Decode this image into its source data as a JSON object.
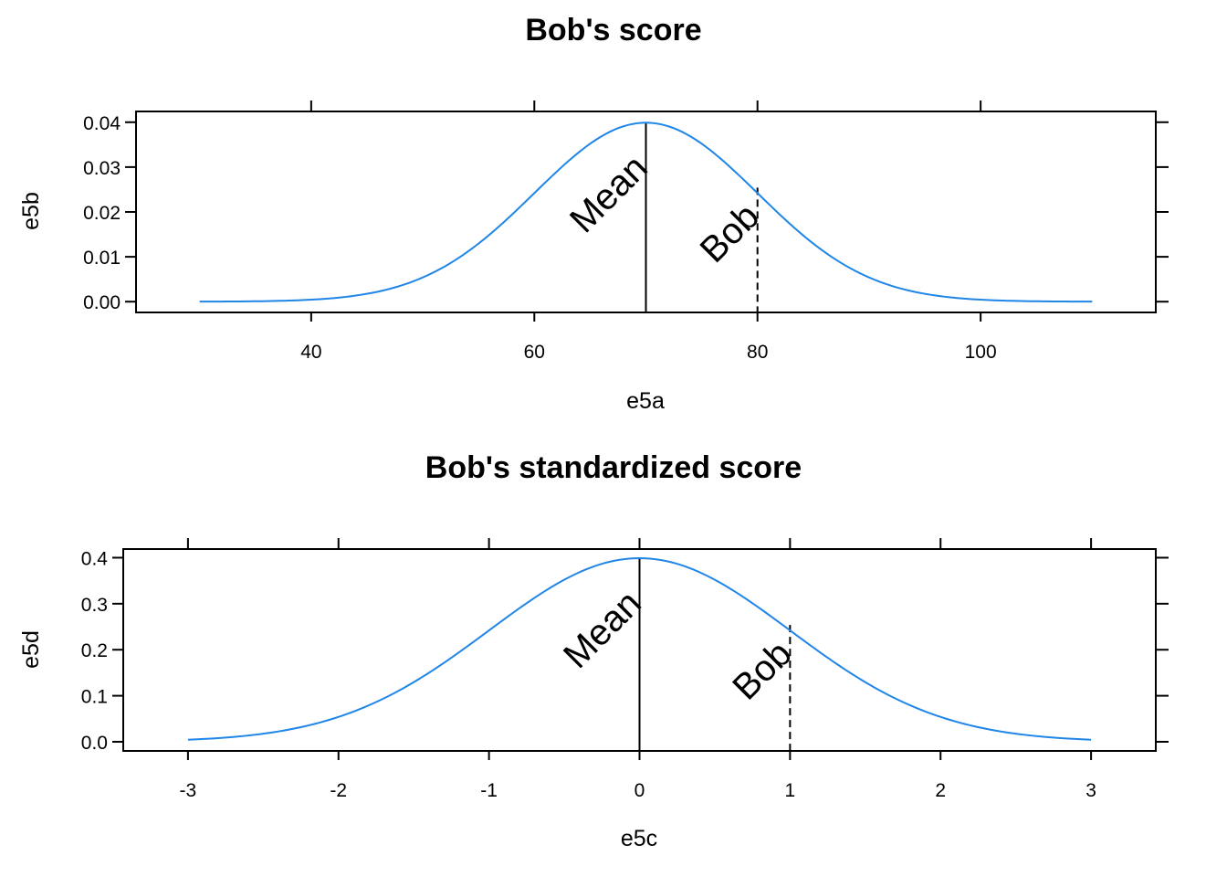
{
  "chart_data": [
    {
      "type": "line",
      "title": "Bob's score",
      "xlabel": "e5a",
      "ylabel": "e5b",
      "xlim": [
        24.3,
        115.7
      ],
      "ylim": [
        -0.0024,
        0.0424
      ],
      "xticks": [
        40,
        60,
        80,
        100
      ],
      "xtick_labels": [
        "40",
        "60",
        "80",
        "100"
      ],
      "yticks": [
        0.0,
        0.01,
        0.02,
        0.03,
        0.04
      ],
      "ytick_labels": [
        "0.00",
        "0.01",
        "0.02",
        "0.03",
        "0.04"
      ],
      "series": [
        {
          "distribution": "normal",
          "mean": 70,
          "sd": 10,
          "x_range": [
            30,
            110
          ],
          "color": "#1f86e8"
        }
      ],
      "vlines": [
        {
          "x": 70,
          "style": "solid",
          "label": "Mean"
        },
        {
          "x": 80,
          "style": "dashed",
          "label": "Bob"
        }
      ],
      "grid": false
    },
    {
      "type": "line",
      "title": "Bob's standardized score",
      "xlabel": "e5c",
      "ylabel": "e5d",
      "xlim": [
        -3.43,
        3.43
      ],
      "ylim": [
        -0.0199,
        0.4188
      ],
      "xticks": [
        -3,
        -2,
        -1,
        0,
        1,
        2,
        3
      ],
      "xtick_labels": [
        "-3",
        "-2",
        "-1",
        "0",
        "1",
        "2",
        "3"
      ],
      "yticks": [
        0.0,
        0.1,
        0.2,
        0.3,
        0.4
      ],
      "ytick_labels": [
        "0.0",
        "0.1",
        "0.2",
        "0.3",
        "0.4"
      ],
      "series": [
        {
          "distribution": "normal",
          "mean": 0,
          "sd": 1,
          "x_range": [
            -3,
            3
          ],
          "color": "#1f86e8"
        }
      ],
      "vlines": [
        {
          "x": 0,
          "style": "solid",
          "label": "Mean"
        },
        {
          "x": 1,
          "style": "dashed",
          "label": "Bob"
        }
      ],
      "grid": false
    }
  ]
}
